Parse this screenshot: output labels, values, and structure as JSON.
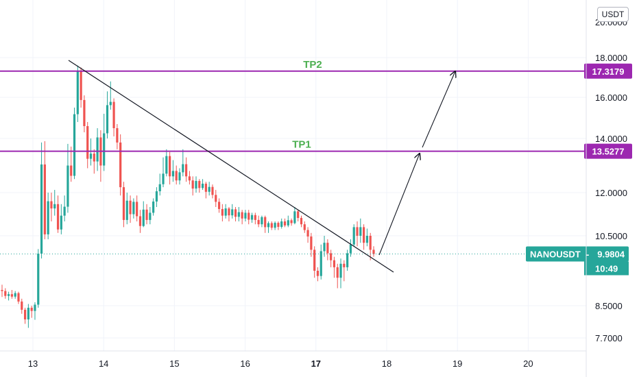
{
  "header": {
    "currency": "USDT"
  },
  "chart_data": {
    "type": "candlestick",
    "symbol_label": "NANOUSDT",
    "last_price": "9.9804",
    "countdown": "10:49",
    "y_ticks": [
      "18.0000",
      "16.0000",
      "14.0000",
      "12.0000",
      "10.5000",
      "8.5000",
      "7.7000"
    ],
    "y_top_partial": "20.0000",
    "x_ticks": [
      "13",
      "14",
      "15",
      "16",
      "17",
      "18",
      "19",
      "20"
    ],
    "levels": [
      {
        "name": "TP2",
        "price": "17.3179"
      },
      {
        "name": "TP1",
        "price": "13.5277"
      }
    ],
    "candles": [
      [
        8.95,
        8.92,
        9.1,
        8.75
      ],
      [
        8.92,
        8.78,
        9.0,
        8.7
      ],
      [
        8.78,
        8.83,
        8.9,
        8.65
      ],
      [
        8.83,
        8.76,
        8.95,
        8.7
      ],
      [
        8.76,
        8.86,
        8.92,
        8.7
      ],
      [
        8.86,
        8.62,
        8.9,
        8.55
      ],
      [
        8.62,
        8.4,
        8.7,
        8.3
      ],
      [
        8.4,
        8.16,
        8.45,
        8.05
      ],
      [
        8.16,
        8.45,
        8.55,
        7.95
      ],
      [
        8.45,
        8.37,
        8.5,
        8.2
      ],
      [
        8.37,
        8.53,
        8.6,
        8.15
      ],
      [
        8.53,
        9.99,
        10.12,
        8.45
      ],
      [
        9.99,
        13.04,
        13.85,
        9.85
      ],
      [
        13.04,
        10.55,
        13.9,
        10.4
      ],
      [
        10.55,
        11.7,
        12.0,
        10.4
      ],
      [
        11.7,
        11.45,
        12.0,
        11.0
      ],
      [
        11.45,
        11.6,
        12.1,
        11.2
      ],
      [
        11.6,
        10.72,
        11.9,
        10.6
      ],
      [
        10.72,
        11.2,
        11.6,
        10.55
      ],
      [
        11.2,
        11.51,
        11.9,
        11.0
      ],
      [
        11.51,
        13.0,
        13.8,
        11.3
      ],
      [
        13.0,
        12.62,
        13.7,
        12.4
      ],
      [
        12.62,
        15.18,
        15.5,
        12.5
      ],
      [
        15.18,
        17.3,
        17.6,
        14.8
      ],
      [
        17.3,
        15.87,
        17.5,
        15.5
      ],
      [
        15.87,
        14.6,
        16.1,
        14.3
      ],
      [
        14.6,
        13.25,
        14.8,
        12.9
      ],
      [
        13.25,
        13.44,
        14.0,
        13.0
      ],
      [
        13.44,
        13.15,
        13.6,
        12.7
      ],
      [
        13.15,
        14.05,
        14.5,
        12.8
      ],
      [
        14.05,
        13.0,
        14.4,
        12.4
      ],
      [
        13.0,
        14.25,
        15.2,
        12.8
      ],
      [
        14.25,
        15.62,
        16.3,
        14.0
      ],
      [
        15.62,
        15.78,
        16.8,
        15.4
      ],
      [
        15.78,
        14.5,
        15.95,
        14.1
      ],
      [
        14.5,
        13.85,
        14.7,
        13.6
      ],
      [
        13.85,
        12.2,
        14.2,
        11.9
      ],
      [
        12.2,
        11.05,
        12.4,
        10.8
      ],
      [
        11.05,
        11.72,
        12.0,
        10.9
      ],
      [
        11.72,
        11.25,
        11.9,
        10.95
      ],
      [
        11.25,
        11.68,
        11.8,
        11.1
      ],
      [
        11.68,
        11.18,
        11.9,
        11.0
      ],
      [
        11.18,
        10.84,
        11.4,
        10.6
      ],
      [
        10.84,
        11.41,
        11.7,
        10.8
      ],
      [
        11.41,
        11.05,
        11.6,
        10.9
      ],
      [
        11.05,
        11.3,
        11.5,
        10.9
      ],
      [
        11.3,
        11.69,
        11.8,
        11.2
      ],
      [
        11.69,
        12.05,
        12.2,
        11.5
      ],
      [
        12.05,
        12.31,
        12.7,
        11.9
      ],
      [
        12.31,
        12.7,
        13.3,
        12.2
      ],
      [
        12.7,
        13.35,
        13.6,
        12.6
      ],
      [
        13.35,
        12.6,
        13.5,
        12.3
      ],
      [
        12.6,
        12.8,
        13.2,
        12.4
      ],
      [
        12.8,
        12.45,
        13.0,
        12.3
      ],
      [
        12.45,
        12.75,
        12.9,
        12.3
      ],
      [
        12.75,
        13.05,
        13.6,
        12.6
      ],
      [
        13.05,
        12.6,
        13.3,
        12.4
      ],
      [
        12.6,
        12.45,
        12.8,
        12.3
      ],
      [
        12.45,
        12.15,
        12.6,
        11.9
      ],
      [
        12.15,
        12.43,
        12.6,
        12.0
      ],
      [
        12.43,
        12.17,
        12.5,
        12.0
      ],
      [
        12.17,
        12.33,
        12.5,
        12.1
      ],
      [
        12.33,
        12.03,
        12.4,
        11.8
      ],
      [
        12.03,
        12.21,
        12.4,
        11.9
      ],
      [
        12.21,
        11.92,
        12.3,
        11.8
      ],
      [
        11.92,
        11.68,
        12.1,
        11.5
      ],
      [
        11.68,
        11.43,
        11.8,
        11.3
      ],
      [
        11.43,
        11.2,
        11.6,
        11.0
      ],
      [
        11.2,
        11.45,
        11.6,
        11.1
      ],
      [
        11.45,
        11.21,
        11.5,
        11.0
      ],
      [
        11.21,
        11.42,
        11.6,
        11.1
      ],
      [
        11.42,
        11.16,
        11.5,
        11.0
      ],
      [
        11.16,
        11.32,
        11.5,
        11.0
      ],
      [
        11.32,
        11.1,
        11.4,
        10.9
      ],
      [
        11.1,
        11.3,
        11.4,
        11.0
      ],
      [
        11.3,
        11.06,
        11.4,
        10.9
      ],
      [
        11.06,
        11.22,
        11.3,
        10.95
      ],
      [
        11.22,
        11.05,
        11.3,
        10.9
      ],
      [
        11.05,
        10.9,
        11.2,
        10.8
      ],
      [
        10.9,
        11.15,
        11.2,
        10.8
      ],
      [
        11.15,
        10.8,
        11.2,
        10.6
      ],
      [
        10.8,
        10.94,
        11.0,
        10.6
      ],
      [
        10.94,
        10.78,
        11.0,
        10.7
      ],
      [
        10.78,
        10.95,
        11.0,
        10.7
      ],
      [
        10.95,
        10.81,
        11.0,
        10.7
      ],
      [
        10.81,
        11.0,
        11.1,
        10.75
      ],
      [
        11.0,
        10.86,
        11.1,
        10.8
      ],
      [
        10.86,
        11.04,
        11.2,
        10.8
      ],
      [
        11.04,
        10.94,
        11.1,
        10.85
      ],
      [
        10.94,
        11.35,
        11.5,
        10.9
      ],
      [
        11.35,
        11.12,
        11.4,
        11.0
      ],
      [
        11.12,
        10.9,
        11.2,
        10.8
      ],
      [
        10.9,
        10.7,
        11.0,
        10.6
      ],
      [
        10.7,
        10.48,
        10.8,
        10.3
      ],
      [
        10.48,
        10.1,
        10.6,
        9.9
      ],
      [
        10.1,
        9.5,
        10.2,
        9.3
      ],
      [
        9.5,
        9.35,
        9.6,
        9.2
      ],
      [
        9.35,
        10.06,
        10.25,
        9.25
      ],
      [
        10.06,
        10.3,
        10.5,
        9.9
      ],
      [
        10.3,
        10.0,
        10.4,
        9.8
      ],
      [
        10.0,
        9.8,
        10.1,
        9.6
      ],
      [
        9.8,
        9.6,
        9.9,
        9.3
      ],
      [
        9.6,
        9.3,
        9.7,
        9.0
      ],
      [
        9.3,
        9.7,
        9.85,
        9.0
      ],
      [
        9.7,
        9.6,
        9.8,
        9.2
      ],
      [
        9.6,
        10.0,
        10.1,
        9.5
      ],
      [
        10.0,
        10.25,
        10.4,
        9.9
      ],
      [
        10.25,
        10.8,
        10.9,
        10.2
      ],
      [
        10.8,
        10.5,
        11.0,
        10.2
      ],
      [
        10.5,
        10.8,
        11.1,
        10.3
      ],
      [
        10.8,
        10.3,
        10.9,
        10.1
      ],
      [
        10.3,
        10.5,
        10.75,
        10.2
      ],
      [
        10.5,
        10.1,
        10.6,
        9.8
      ],
      [
        10.1,
        9.98,
        10.2,
        9.9
      ]
    ]
  }
}
